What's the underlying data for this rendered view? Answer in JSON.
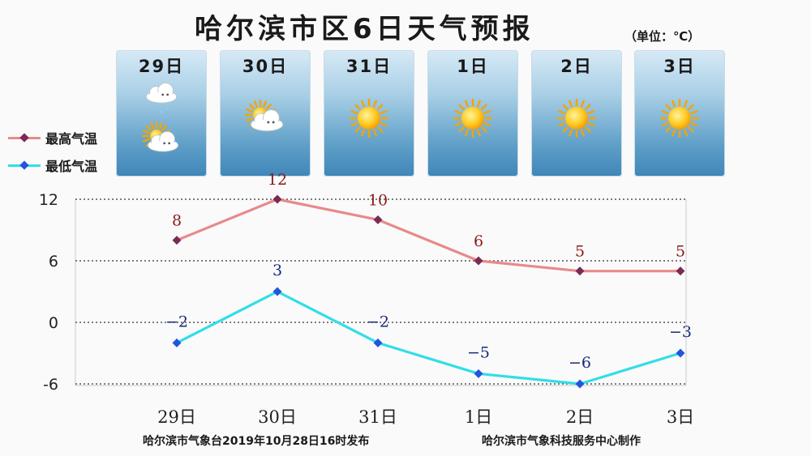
{
  "header": {
    "title": "哈尔滨市区6日天气预报",
    "unit": "（单位：℃）"
  },
  "days": [
    {
      "label": "29日",
      "icon": "cloud-sun-rain-icon"
    },
    {
      "label": "30日",
      "icon": "cloud-sun-icon"
    },
    {
      "label": "31日",
      "icon": "sun-icon"
    },
    {
      "label": "1日",
      "icon": "sun-icon"
    },
    {
      "label": "2日",
      "icon": "sun-icon"
    },
    {
      "label": "3日",
      "icon": "sun-icon"
    }
  ],
  "legend": {
    "high": "最高气温",
    "low": "最低气温"
  },
  "colors": {
    "high_line": "#e88a8a",
    "high_marker": "#7a2a55",
    "high_label": "#8b1a1a",
    "low_line": "#33dde8",
    "low_marker": "#2255dd",
    "low_label": "#1a2a7a"
  },
  "chart_data": {
    "type": "line",
    "categories": [
      "29日",
      "30日",
      "31日",
      "1日",
      "2日",
      "3日"
    ],
    "series": [
      {
        "name": "最高气温",
        "values": [
          8,
          12,
          10,
          6,
          5,
          5
        ]
      },
      {
        "name": "最低气温",
        "values": [
          -2,
          3,
          -2,
          -5,
          -6,
          -3
        ]
      }
    ],
    "ylim": [
      -6,
      12
    ],
    "yticks": [
      12,
      6,
      0,
      -6
    ],
    "ytick_labels": [
      "12",
      "6",
      "0",
      "-6"
    ],
    "data_labels_high": [
      "8",
      "12",
      "10",
      "6",
      "5",
      "5"
    ],
    "data_labels_low": [
      "−2",
      "3",
      "−2",
      "−5",
      "−6",
      "−3"
    ],
    "grid": "horizontal-dotted",
    "legend_position": "left"
  },
  "footer": {
    "left": "哈尔滨市气象台2019年10月28日16时发布",
    "right": "哈尔滨市气象科技服务中心制作"
  }
}
